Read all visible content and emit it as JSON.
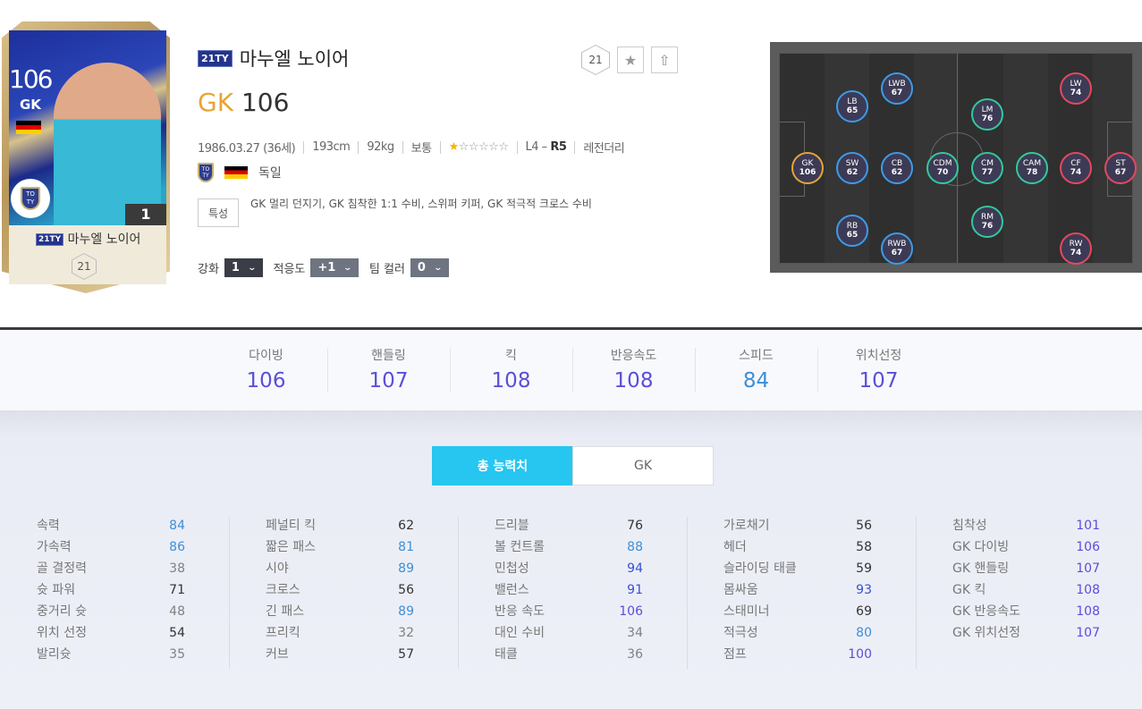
{
  "player": {
    "season_badge": "21TY",
    "name": "마누엘 노이어",
    "position": "GK",
    "overall": "106",
    "card_level": "1",
    "card_hex": "21",
    "club_badge": "TOTY",
    "birth": "1986.03.27 (36세)",
    "height": "193cm",
    "weight": "92kg",
    "body_type": "보통",
    "stars_total": 6,
    "stars_filled": 1,
    "skill_moves": "L4 –",
    "skill_bold": "R5",
    "tag": "레전더리",
    "nation": "독일",
    "trait_label": "특성",
    "traits": "GK 멀리 던지기, GK 침착한 1:1 수비, 스위퍼 키퍼, GK 적극적 크로스 수비"
  },
  "actions": {
    "hex_label": "21",
    "favorite_icon": "star-icon",
    "share_icon": "upload-icon"
  },
  "selectors": [
    {
      "label": "강화",
      "value": "1",
      "color": "#3a3d45"
    },
    {
      "label": "적응도",
      "value": "+1",
      "color": "#6e7480"
    },
    {
      "label": "팀 컬러",
      "value": "0",
      "color": "#6e7480"
    }
  ],
  "colors": {
    "accent": "#e7a533",
    "tab_active": "#26c6f0",
    "gk": "#e7a533",
    "def": "#3d9be9",
    "mid": "#33c99a",
    "att": "#e44a5c",
    "tier_low": "#808080",
    "tier_mid": "#333333",
    "tier_80": "#3d8fd6",
    "tier_90": "#3550d6",
    "tier_100": "#5a4fd8"
  },
  "positions": [
    {
      "pos": "GK",
      "ovr": 106,
      "group": "gk"
    },
    {
      "pos": "SW",
      "ovr": 62,
      "group": "def"
    },
    {
      "pos": "CB",
      "ovr": 62,
      "group": "def"
    },
    {
      "pos": "LB",
      "ovr": 65,
      "group": "def"
    },
    {
      "pos": "RB",
      "ovr": 65,
      "group": "def"
    },
    {
      "pos": "LWB",
      "ovr": 67,
      "group": "def"
    },
    {
      "pos": "RWB",
      "ovr": 67,
      "group": "def"
    },
    {
      "pos": "CDM",
      "ovr": 70,
      "group": "mid"
    },
    {
      "pos": "CM",
      "ovr": 77,
      "group": "mid"
    },
    {
      "pos": "CAM",
      "ovr": 78,
      "group": "mid"
    },
    {
      "pos": "LM",
      "ovr": 76,
      "group": "mid"
    },
    {
      "pos": "RM",
      "ovr": 76,
      "group": "mid"
    },
    {
      "pos": "CF",
      "ovr": 74,
      "group": "att"
    },
    {
      "pos": "ST",
      "ovr": 67,
      "group": "att"
    },
    {
      "pos": "LW",
      "ovr": 74,
      "group": "att"
    },
    {
      "pos": "RW",
      "ovr": 74,
      "group": "att"
    }
  ],
  "summary": [
    {
      "label": "다이빙",
      "value": 106
    },
    {
      "label": "핸들링",
      "value": 107
    },
    {
      "label": "킥",
      "value": 108
    },
    {
      "label": "반응속도",
      "value": 108
    },
    {
      "label": "스피드",
      "value": 84
    },
    {
      "label": "위치선정",
      "value": 107
    }
  ],
  "tabs": [
    "총 능력치",
    "GK"
  ],
  "stat_columns": [
    [
      [
        "속력",
        84
      ],
      [
        "가속력",
        86
      ],
      [
        "골 결정력",
        38
      ],
      [
        "슛 파워",
        71
      ],
      [
        "중거리 슛",
        48
      ],
      [
        "위치 선정",
        54
      ],
      [
        "발리슛",
        35
      ]
    ],
    [
      [
        "페널티 킥",
        62
      ],
      [
        "짧은 패스",
        81
      ],
      [
        "시야",
        89
      ],
      [
        "크로스",
        56
      ],
      [
        "긴 패스",
        89
      ],
      [
        "프리킥",
        32
      ],
      [
        "커브",
        57
      ]
    ],
    [
      [
        "드리블",
        76
      ],
      [
        "볼 컨트롤",
        88
      ],
      [
        "민첩성",
        94
      ],
      [
        "밸런스",
        91
      ],
      [
        "반응 속도",
        106
      ],
      [
        "대인 수비",
        34
      ],
      [
        "태클",
        36
      ]
    ],
    [
      [
        "가로채기",
        56
      ],
      [
        "헤더",
        58
      ],
      [
        "슬라이딩 태클",
        59
      ],
      [
        "몸싸움",
        93
      ],
      [
        "스태미너",
        69
      ],
      [
        "적극성",
        80
      ],
      [
        "점프",
        100
      ]
    ],
    [
      [
        "침착성",
        101
      ],
      [
        "GK 다이빙",
        106
      ],
      [
        "GK 핸들링",
        107
      ],
      [
        "GK 킥",
        108
      ],
      [
        "GK 반응속도",
        108
      ],
      [
        "GK 위치선정",
        107
      ]
    ]
  ]
}
